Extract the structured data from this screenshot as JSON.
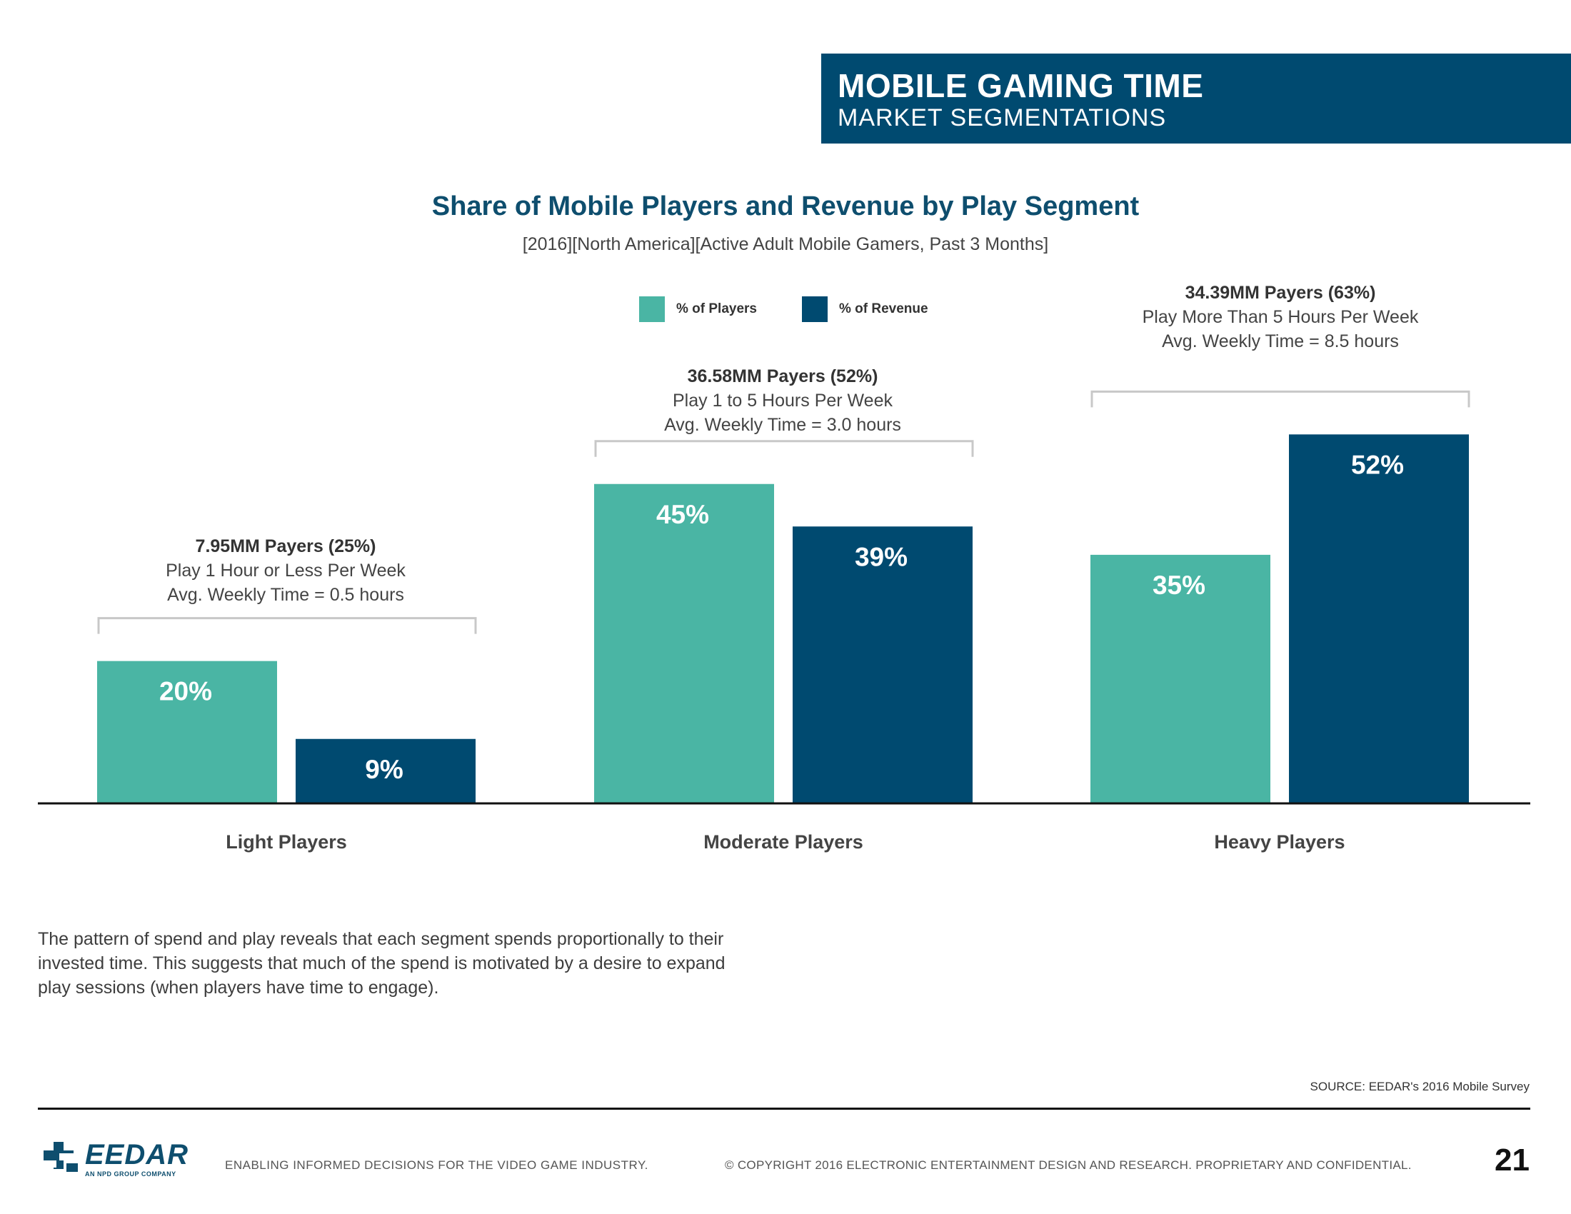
{
  "header": {
    "title": "MOBILE GAMING TIME",
    "subtitle": "MARKET SEGMENTATIONS"
  },
  "chart_data": {
    "type": "bar",
    "title": "Share of Mobile Players and Revenue by Play Segment",
    "subtitle": "[2016][North America][Active Adult Mobile Gamers, Past 3 Months]",
    "categories": [
      "Light Players",
      "Moderate Players",
      "Heavy Players"
    ],
    "series": [
      {
        "name": "% of Players",
        "values": [
          20,
          45,
          35
        ],
        "labels": [
          "20%",
          "45%",
          "35%"
        ],
        "color": "#4ab5a4"
      },
      {
        "name": "% of Revenue",
        "values": [
          9,
          39,
          52
        ],
        "labels": [
          "9%",
          "39%",
          "52%"
        ],
        "color": "#004a70"
      }
    ],
    "ylim": [
      0,
      60
    ],
    "grid": false,
    "legend_position": "top",
    "annotations": [
      {
        "players": "7.95MM Payers (25%)",
        "line1": "Play 1 Hour or Less Per Week",
        "line2": "Avg. Weekly Time = 0.5 hours"
      },
      {
        "players": "36.58MM Payers (52%)",
        "line1": "Play 1 to 5 Hours Per Week",
        "line2": "Avg. Weekly Time = 3.0 hours"
      },
      {
        "players": "34.39MM Payers (63%)",
        "line1": "Play More Than 5 Hours Per Week",
        "line2": "Avg. Weekly Time = 8.5 hours"
      }
    ]
  },
  "body_text": "The pattern of spend and play reveals that each segment spends proportionally to their invested time. This suggests that much of the spend is motivated by a desire to expand play sessions (when players have time to engage).",
  "source": "SOURCE: EEDAR's 2016 Mobile Survey",
  "footer": {
    "logo_text": "EEDAR",
    "logo_sub": "AN NPD GROUP COMPANY",
    "tagline": "ENABLING INFORMED DECISIONS FOR THE  VIDEO GAME INDUSTRY.",
    "copyright": "© COPYRIGHT 2016 ELECTRONIC ENTERTAINMENT DESIGN AND RESEARCH. PROPRIETARY AND CONFIDENTIAL.",
    "page_number": "21"
  }
}
